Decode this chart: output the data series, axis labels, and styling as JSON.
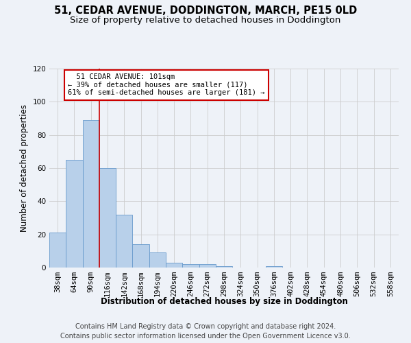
{
  "title1": "51, CEDAR AVENUE, DODDINGTON, MARCH, PE15 0LD",
  "title2": "Size of property relative to detached houses in Doddington",
  "xlabel": "Distribution of detached houses by size in Doddington",
  "ylabel": "Number of detached properties",
  "categories": [
    "38sqm",
    "64sqm",
    "90sqm",
    "116sqm",
    "142sqm",
    "168sqm",
    "194sqm",
    "220sqm",
    "246sqm",
    "272sqm",
    "298sqm",
    "324sqm",
    "350sqm",
    "376sqm",
    "402sqm",
    "428sqm",
    "454sqm",
    "480sqm",
    "506sqm",
    "532sqm",
    "558sqm"
  ],
  "values": [
    21,
    65,
    89,
    60,
    32,
    14,
    9,
    3,
    2,
    2,
    1,
    0,
    0,
    1,
    0,
    0,
    0,
    0,
    0,
    0,
    0
  ],
  "bar_color": "#b8d0ea",
  "bar_edge_color": "#6699cc",
  "annotation_box_text": "  51 CEDAR AVENUE: 101sqm\n← 39% of detached houses are smaller (117)\n61% of semi-detached houses are larger (181) →",
  "annotation_box_color": "#ffffff",
  "annotation_box_edge_color": "#cc0000",
  "annotation_line_color": "#cc0000",
  "ylim": [
    0,
    120
  ],
  "yticks": [
    0,
    20,
    40,
    60,
    80,
    100,
    120
  ],
  "grid_color": "#cccccc",
  "background_color": "#eef2f8",
  "footer1": "Contains HM Land Registry data © Crown copyright and database right 2024.",
  "footer2": "Contains public sector information licensed under the Open Government Licence v3.0.",
  "title1_fontsize": 10.5,
  "title2_fontsize": 9.5,
  "xlabel_fontsize": 8.5,
  "ylabel_fontsize": 8.5,
  "tick_fontsize": 7.5,
  "footer_fontsize": 7.0,
  "ann_fontsize": 7.5
}
